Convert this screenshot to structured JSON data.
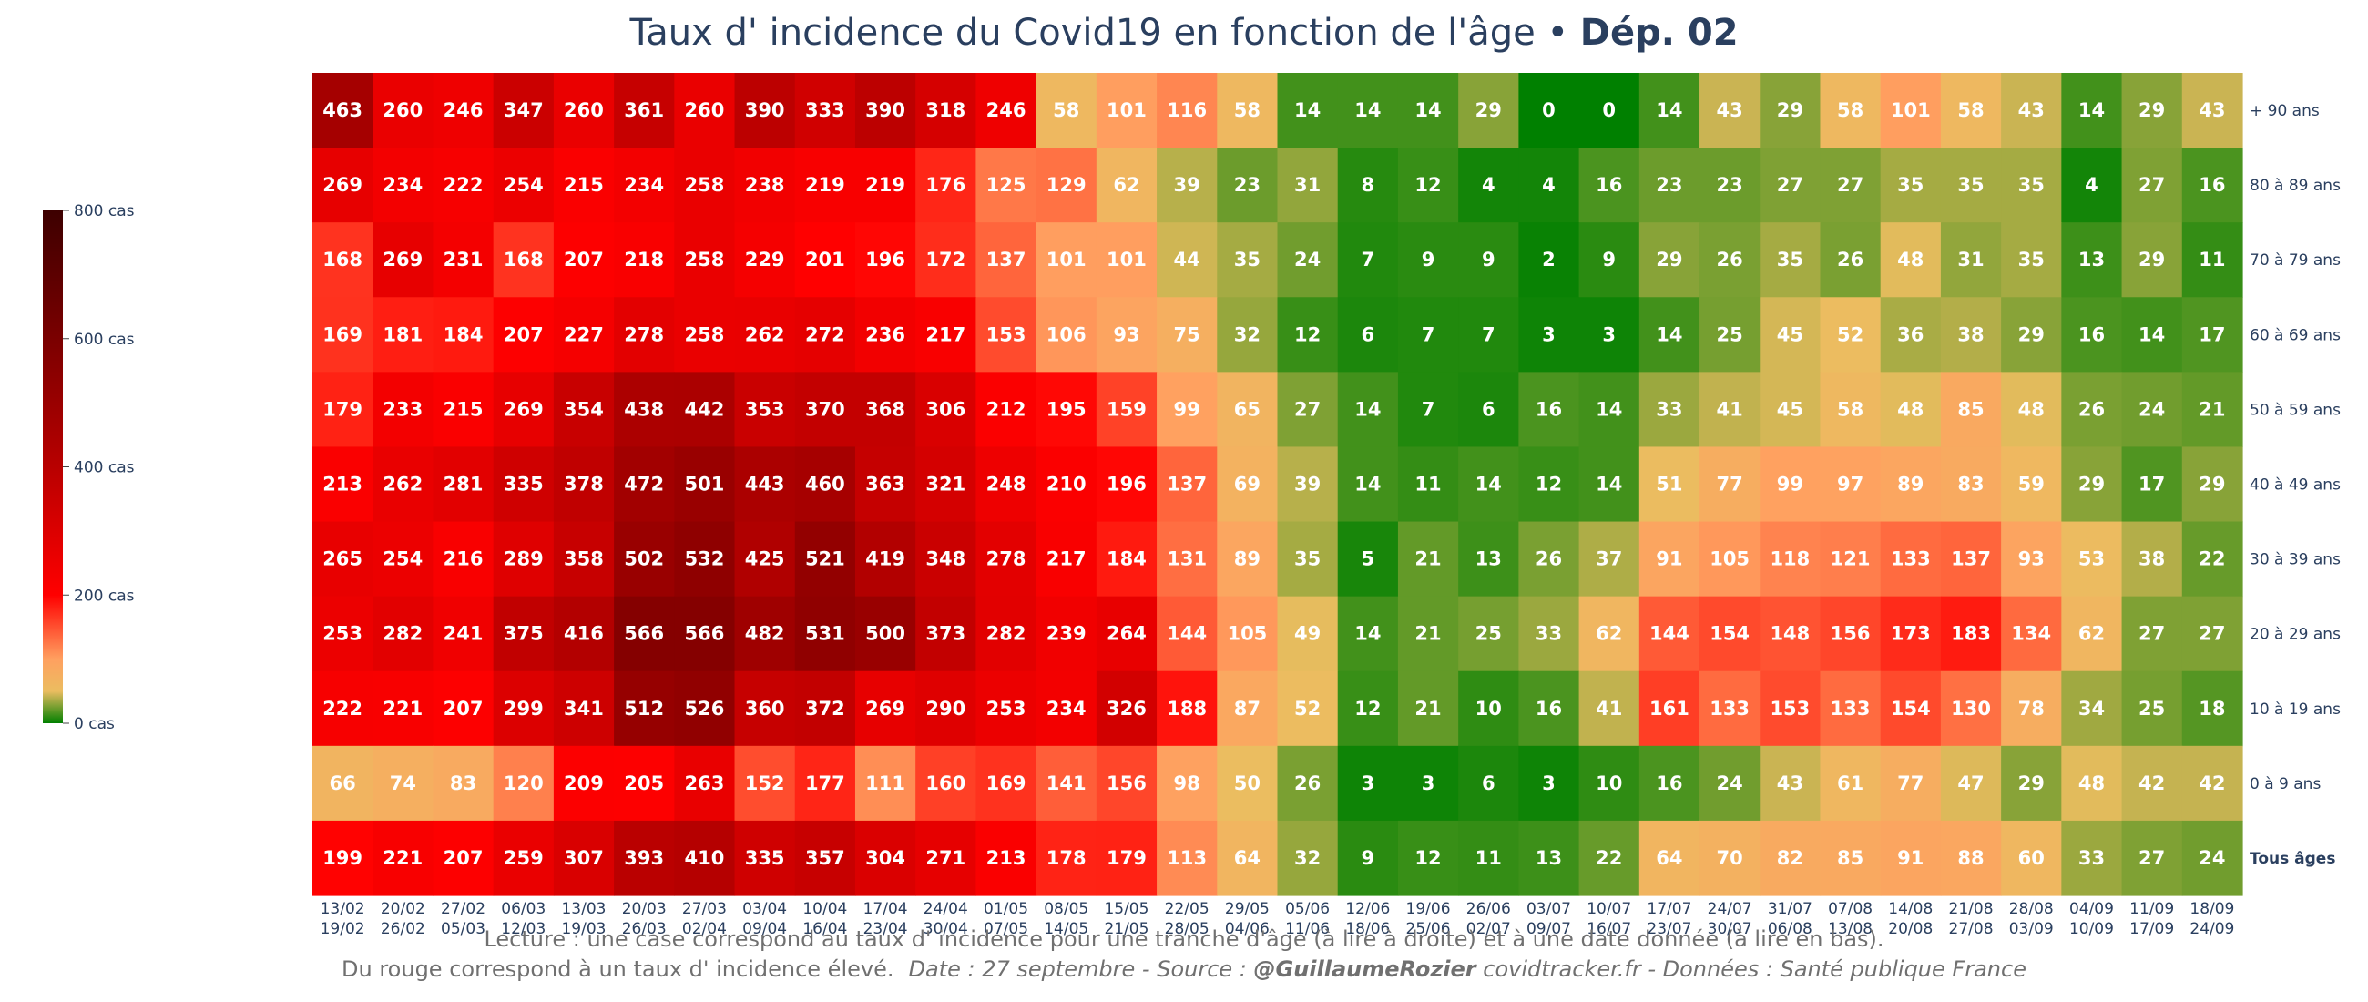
{
  "title": {
    "main": "Taux d' incidence du Covid19 en fonction de l'âge",
    "separator": "•",
    "dept": "Dép. 02"
  },
  "colorscale": {
    "stops": [
      {
        "v": 0,
        "c": "#008000"
      },
      {
        "v": 50,
        "c": "#ebbd60"
      },
      {
        "v": 100,
        "c": "#ffa060"
      },
      {
        "v": 200,
        "c": "#ff0000"
      },
      {
        "v": 400,
        "c": "#b80000"
      },
      {
        "v": 800,
        "c": "#3d0000"
      }
    ],
    "ticks": [
      {
        "value": 0,
        "label": "0 cas"
      },
      {
        "value": 200,
        "label": "200 cas"
      },
      {
        "value": 400,
        "label": "400 cas"
      },
      {
        "value": 600,
        "label": "600 cas"
      },
      {
        "value": 800,
        "label": "800 cas"
      }
    ]
  },
  "chart_data": {
    "type": "heatmap",
    "title": "Taux d' incidence du Covid19 en fonction de l'âge • Dép. 02",
    "zmin": 0,
    "zmax": 800,
    "x": [
      [
        "13/02",
        "19/02"
      ],
      [
        "20/02",
        "26/02"
      ],
      [
        "27/02",
        "05/03"
      ],
      [
        "06/03",
        "12/03"
      ],
      [
        "13/03",
        "19/03"
      ],
      [
        "20/03",
        "26/03"
      ],
      [
        "27/03",
        "02/04"
      ],
      [
        "03/04",
        "09/04"
      ],
      [
        "10/04",
        "16/04"
      ],
      [
        "17/04",
        "23/04"
      ],
      [
        "24/04",
        "30/04"
      ],
      [
        "01/05",
        "07/05"
      ],
      [
        "08/05",
        "14/05"
      ],
      [
        "15/05",
        "21/05"
      ],
      [
        "22/05",
        "28/05"
      ],
      [
        "29/05",
        "04/06"
      ],
      [
        "05/06",
        "11/06"
      ],
      [
        "12/06",
        "18/06"
      ],
      [
        "19/06",
        "25/06"
      ],
      [
        "26/06",
        "02/07"
      ],
      [
        "03/07",
        "09/07"
      ],
      [
        "10/07",
        "16/07"
      ],
      [
        "17/07",
        "23/07"
      ],
      [
        "24/07",
        "30/07"
      ],
      [
        "31/07",
        "06/08"
      ],
      [
        "07/08",
        "13/08"
      ],
      [
        "14/08",
        "20/08"
      ],
      [
        "21/08",
        "27/08"
      ],
      [
        "28/08",
        "03/09"
      ],
      [
        "04/09",
        "10/09"
      ],
      [
        "11/09",
        "17/09"
      ],
      [
        "18/09",
        "24/09"
      ]
    ],
    "y": [
      "+ 90 ans",
      "80 à 89 ans",
      "70 à 79 ans",
      "60 à 69 ans",
      "50 à 59 ans",
      "40 à 49 ans",
      "30 à 39 ans",
      "20 à 29 ans",
      "10 à 19 ans",
      "0 à 9 ans",
      "Tous âges"
    ],
    "z": [
      [
        463,
        260,
        246,
        347,
        260,
        361,
        260,
        390,
        333,
        390,
        318,
        246,
        58,
        101,
        116,
        58,
        14,
        14,
        14,
        29,
        0,
        0,
        14,
        43,
        29,
        58,
        101,
        58,
        43,
        14,
        29,
        43
      ],
      [
        269,
        234,
        222,
        254,
        215,
        234,
        258,
        238,
        219,
        219,
        176,
        125,
        129,
        62,
        39,
        23,
        31,
        8,
        12,
        4,
        4,
        16,
        23,
        23,
        27,
        27,
        35,
        35,
        35,
        4,
        27,
        16
      ],
      [
        168,
        269,
        231,
        168,
        207,
        218,
        258,
        229,
        201,
        196,
        172,
        137,
        101,
        101,
        44,
        35,
        24,
        7,
        9,
        9,
        2,
        9,
        29,
        26,
        35,
        26,
        48,
        31,
        35,
        13,
        29,
        11
      ],
      [
        169,
        181,
        184,
        207,
        227,
        278,
        258,
        262,
        272,
        236,
        217,
        153,
        106,
        93,
        75,
        32,
        12,
        6,
        7,
        7,
        3,
        3,
        14,
        25,
        45,
        52,
        36,
        38,
        29,
        16,
        14,
        17
      ],
      [
        179,
        233,
        215,
        269,
        354,
        438,
        442,
        353,
        370,
        368,
        306,
        212,
        195,
        159,
        99,
        65,
        27,
        14,
        7,
        6,
        16,
        14,
        33,
        41,
        45,
        58,
        48,
        85,
        48,
        26,
        24,
        21
      ],
      [
        213,
        262,
        281,
        335,
        378,
        472,
        501,
        443,
        460,
        363,
        321,
        248,
        210,
        196,
        137,
        69,
        39,
        14,
        11,
        14,
        12,
        14,
        51,
        77,
        99,
        97,
        89,
        83,
        59,
        29,
        17,
        29
      ],
      [
        265,
        254,
        216,
        289,
        358,
        502,
        532,
        425,
        521,
        419,
        348,
        278,
        217,
        184,
        131,
        89,
        35,
        5,
        21,
        13,
        26,
        37,
        91,
        105,
        118,
        121,
        133,
        137,
        93,
        53,
        38,
        22
      ],
      [
        253,
        282,
        241,
        375,
        416,
        566,
        566,
        482,
        531,
        500,
        373,
        282,
        239,
        264,
        144,
        105,
        49,
        14,
        21,
        25,
        33,
        62,
        144,
        154,
        148,
        156,
        173,
        183,
        134,
        62,
        27,
        27
      ],
      [
        222,
        221,
        207,
        299,
        341,
        512,
        526,
        360,
        372,
        269,
        290,
        253,
        234,
        326,
        188,
        87,
        52,
        12,
        21,
        10,
        16,
        41,
        161,
        133,
        153,
        133,
        154,
        130,
        78,
        34,
        25,
        18
      ],
      [
        66,
        74,
        83,
        120,
        209,
        205,
        263,
        152,
        177,
        111,
        160,
        169,
        141,
        156,
        98,
        50,
        26,
        3,
        3,
        6,
        3,
        10,
        16,
        24,
        43,
        61,
        77,
        47,
        29,
        48,
        42,
        42
      ],
      [
        199,
        221,
        207,
        259,
        307,
        393,
        410,
        335,
        357,
        304,
        271,
        213,
        178,
        179,
        113,
        64,
        32,
        9,
        12,
        11,
        13,
        22,
        64,
        70,
        82,
        85,
        91,
        88,
        60,
        33,
        27,
        24
      ]
    ]
  },
  "caption": {
    "line1": "Lecture : une case correspond au taux d' incidence pour une tranche d'âge (à lire à droite) et à une date donnée (à lire en bas).",
    "line2_a": "Du rouge correspond à un taux d' incidence élevé.",
    "line2_b": "Date : 27 septembre - Source :",
    "line2_c": "@GuillaumeRozier",
    "line2_d": "covidtracker.fr - Données : Santé publique France"
  }
}
